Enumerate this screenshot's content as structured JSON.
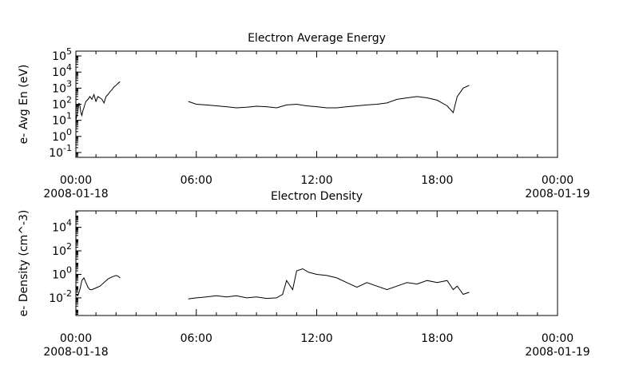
{
  "chart_data": [
    {
      "type": "line",
      "title": "Electron Average Energy",
      "ylabel": "e- Avg En (eV)",
      "yscale": "log",
      "ylim_exp": [
        -1.3,
        5.3
      ],
      "ytick_exps": [
        -1,
        0,
        1,
        2,
        3,
        4,
        5
      ],
      "xlim_hours": [
        0,
        24
      ],
      "xticks": [
        {
          "hour": 0,
          "label": "00:00",
          "date": "2008-01-18"
        },
        {
          "hour": 6,
          "label": "06:00",
          "date": ""
        },
        {
          "hour": 12,
          "label": "12:00",
          "date": ""
        },
        {
          "hour": 18,
          "label": "18:00",
          "date": ""
        },
        {
          "hour": 24,
          "label": "00:00",
          "date": "2008-01-19"
        }
      ],
      "segments": [
        {
          "x_hours": [
            0.0,
            0.05,
            0.1,
            0.15,
            0.2,
            0.25,
            0.3,
            0.35,
            0.4,
            0.45,
            0.5,
            0.6,
            0.7,
            0.8,
            0.9,
            1.0,
            1.1,
            1.2,
            1.3,
            1.4,
            1.5,
            1.6,
            1.7,
            1.8,
            1.9,
            2.0,
            2.1,
            2.2
          ],
          "y_values": [
            10,
            20,
            40,
            120,
            80,
            30,
            20,
            40,
            60,
            100,
            150,
            200,
            300,
            200,
            400,
            150,
            300,
            250,
            200,
            120,
            300,
            400,
            600,
            800,
            1200,
            1500,
            2000,
            2500
          ]
        },
        {
          "x_hours": [
            5.6,
            6.0,
            6.5,
            7.0,
            7.5,
            8.0,
            8.5,
            9.0,
            9.5,
            10.0,
            10.5,
            11.0,
            11.5,
            12.0,
            12.5,
            13.0,
            13.5,
            14.0,
            14.5,
            15.0,
            15.5,
            16.0,
            16.5,
            17.0,
            17.5,
            18.0,
            18.5,
            18.8,
            19.0,
            19.3,
            19.6
          ],
          "y_values": [
            150,
            100,
            90,
            80,
            70,
            60,
            65,
            75,
            70,
            60,
            90,
            100,
            80,
            70,
            60,
            60,
            70,
            80,
            90,
            100,
            120,
            200,
            250,
            300,
            250,
            180,
            80,
            30,
            300,
            1000,
            1500
          ]
        }
      ]
    },
    {
      "type": "line",
      "title": "Electron Density",
      "ylabel": "e- Density (cm^-3)",
      "yscale": "log",
      "ylim_exp": [
        -3.5,
        5.4
      ],
      "ytick_exps": [
        -2,
        0,
        2,
        4
      ],
      "xlim_hours": [
        0,
        24
      ],
      "xticks": [
        {
          "hour": 0,
          "label": "00:00",
          "date": "2008-01-18"
        },
        {
          "hour": 6,
          "label": "06:00",
          "date": ""
        },
        {
          "hour": 12,
          "label": "12:00",
          "date": ""
        },
        {
          "hour": 18,
          "label": "18:00",
          "date": ""
        },
        {
          "hour": 24,
          "label": "00:00",
          "date": "2008-01-19"
        }
      ],
      "segments": [
        {
          "x_hours": [
            0.0,
            0.1,
            0.2,
            0.3,
            0.4,
            0.5,
            0.6,
            0.7,
            0.8,
            1.0,
            1.2,
            1.4,
            1.6,
            1.8,
            2.0,
            2.1,
            2.2
          ],
          "y_values": [
            0.02,
            0.015,
            0.05,
            0.3,
            0.5,
            0.2,
            0.08,
            0.05,
            0.05,
            0.07,
            0.1,
            0.2,
            0.4,
            0.6,
            0.8,
            0.7,
            0.5
          ]
        },
        {
          "x_hours": [
            5.6,
            6.0,
            6.5,
            7.0,
            7.5,
            8.0,
            8.5,
            9.0,
            9.5,
            10.0,
            10.3,
            10.5,
            10.8,
            11.0,
            11.3,
            11.6,
            12.0,
            12.5,
            13.0,
            13.5,
            14.0,
            14.5,
            15.0,
            15.5,
            16.0,
            16.5,
            17.0,
            17.5,
            18.0,
            18.5,
            18.8,
            19.0,
            19.3,
            19.6
          ],
          "y_values": [
            0.008,
            0.01,
            0.012,
            0.015,
            0.012,
            0.015,
            0.01,
            0.012,
            0.009,
            0.01,
            0.02,
            0.3,
            0.05,
            2,
            3,
            1.5,
            1,
            0.8,
            0.5,
            0.2,
            0.08,
            0.2,
            0.1,
            0.05,
            0.1,
            0.2,
            0.15,
            0.3,
            0.2,
            0.3,
            0.05,
            0.1,
            0.02,
            0.03
          ]
        }
      ]
    }
  ]
}
